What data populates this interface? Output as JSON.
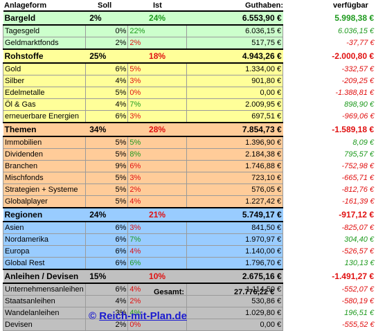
{
  "headers": {
    "anlageform": "Anlageform",
    "soll": "Soll",
    "ist": "Ist",
    "guthaben": "Guthaben:",
    "verfuegbar": "verfügbar"
  },
  "groups": [
    {
      "name": "Bargeld",
      "soll": "2%",
      "ist": "24%",
      "ist_sign": "pos",
      "guthaben": "6.553,90 €",
      "verfuegbar": "5.998,38 €",
      "verf_sign": "pos",
      "cls": "g-bar",
      "items": [
        {
          "name": "Tagesgeld",
          "soll": "0%",
          "ist": "22%",
          "ist_sign": "pos",
          "guthaben": "6.036,15 €",
          "verfuegbar": "6.036,15 €",
          "verf_sign": "pos"
        },
        {
          "name": "Geldmarktfonds",
          "soll": "2%",
          "ist": "2%",
          "ist_sign": "neg",
          "guthaben": "517,75 €",
          "verfuegbar": "-37,77 €",
          "verf_sign": "neg"
        }
      ]
    },
    {
      "name": "Rohstoffe",
      "soll": "25%",
      "ist": "18%",
      "ist_sign": "neg",
      "guthaben": "4.943,26 €",
      "verfuegbar": "-2.000,80 €",
      "verf_sign": "neg",
      "cls": "g-roh",
      "items": [
        {
          "name": "Gold",
          "soll": "6%",
          "ist": "5%",
          "ist_sign": "neg",
          "guthaben": "1.334,00 €",
          "verfuegbar": "-332,57 €",
          "verf_sign": "neg"
        },
        {
          "name": "Silber",
          "soll": "4%",
          "ist": "3%",
          "ist_sign": "neg",
          "guthaben": "901,80 €",
          "verfuegbar": "-209,25 €",
          "verf_sign": "neg"
        },
        {
          "name": "Edelmetalle",
          "soll": "5%",
          "ist": "0%",
          "ist_sign": "neg",
          "guthaben": "0,00 €",
          "verfuegbar": "-1.388,81 €",
          "verf_sign": "neg"
        },
        {
          "name": "Öl & Gas",
          "soll": "4%",
          "ist": "7%",
          "ist_sign": "pos",
          "guthaben": "2.009,95 €",
          "verfuegbar": "898,90 €",
          "verf_sign": "pos"
        },
        {
          "name": "erneuerbare Energien",
          "soll": "6%",
          "ist": "3%",
          "ist_sign": "neg",
          "guthaben": "697,51 €",
          "verfuegbar": "-969,06 €",
          "verf_sign": "neg"
        }
      ]
    },
    {
      "name": "Themen",
      "soll": "34%",
      "ist": "28%",
      "ist_sign": "neg",
      "guthaben": "7.854,73 €",
      "verfuegbar": "-1.589,18 €",
      "verf_sign": "neg",
      "cls": "g-the",
      "items": [
        {
          "name": "Immobilien",
          "soll": "5%",
          "ist": "5%",
          "ist_sign": "pos",
          "guthaben": "1.396,90 €",
          "verfuegbar": "8,09 €",
          "verf_sign": "pos"
        },
        {
          "name": "Dividenden",
          "soll": "5%",
          "ist": "8%",
          "ist_sign": "pos",
          "guthaben": "2.184,38 €",
          "verfuegbar": "795,57 €",
          "verf_sign": "pos"
        },
        {
          "name": "Branchen",
          "soll": "9%",
          "ist": "6%",
          "ist_sign": "neg",
          "guthaben": "1.746,88 €",
          "verfuegbar": "-752,98 €",
          "verf_sign": "neg"
        },
        {
          "name": "Mischfonds",
          "soll": "5%",
          "ist": "3%",
          "ist_sign": "neg",
          "guthaben": "723,10 €",
          "verfuegbar": "-665,71 €",
          "verf_sign": "neg"
        },
        {
          "name": "Strategien + Systeme",
          "soll": "5%",
          "ist": "2%",
          "ist_sign": "neg",
          "guthaben": "576,05 €",
          "verfuegbar": "-812,76 €",
          "verf_sign": "neg"
        },
        {
          "name": "Globalplayer",
          "soll": "5%",
          "ist": "4%",
          "ist_sign": "neg",
          "guthaben": "1.227,42 €",
          "verfuegbar": "-161,39 €",
          "verf_sign": "neg"
        }
      ]
    },
    {
      "name": "Regionen",
      "soll": "24%",
      "ist": "21%",
      "ist_sign": "neg",
      "guthaben": "5.749,17 €",
      "verfuegbar": "-917,12 €",
      "verf_sign": "neg",
      "cls": "g-reg",
      "items": [
        {
          "name": "Asien",
          "soll": "6%",
          "ist": "3%",
          "ist_sign": "neg",
          "guthaben": "841,50 €",
          "verfuegbar": "-825,07 €",
          "verf_sign": "neg"
        },
        {
          "name": "Nordamerika",
          "soll": "6%",
          "ist": "7%",
          "ist_sign": "pos",
          "guthaben": "1.970,97 €",
          "verfuegbar": "304,40 €",
          "verf_sign": "pos"
        },
        {
          "name": "Europa",
          "soll": "6%",
          "ist": "4%",
          "ist_sign": "neg",
          "guthaben": "1.140,00 €",
          "verfuegbar": "-526,57 €",
          "verf_sign": "neg"
        },
        {
          "name": "Global Rest",
          "soll": "6%",
          "ist": "6%",
          "ist_sign": "pos",
          "guthaben": "1.796,70 €",
          "verfuegbar": "130,13 €",
          "verf_sign": "pos"
        }
      ]
    },
    {
      "name": "Anleihen / Devisen",
      "soll": "15%",
      "ist": "10%",
      "ist_sign": "neg",
      "guthaben": "2.675,16 €",
      "verfuegbar": "-1.491,27 €",
      "verf_sign": "neg",
      "cls": "g-anl",
      "items": [
        {
          "name": "Unternehmensanleihen",
          "soll": "6%",
          "ist": "4%",
          "ist_sign": "neg",
          "guthaben": "1.114,50 €",
          "verfuegbar": "-552,07 €",
          "verf_sign": "neg"
        },
        {
          "name": "Staatsanleihen",
          "soll": "4%",
          "ist": "2%",
          "ist_sign": "neg",
          "guthaben": "530,86 €",
          "verfuegbar": "-580,19 €",
          "verf_sign": "neg"
        },
        {
          "name": "Wandelanleihen",
          "soll": "3%",
          "ist": "4%",
          "ist_sign": "pos",
          "guthaben": "1.029,80 €",
          "verfuegbar": "196,51 €",
          "verf_sign": "pos"
        },
        {
          "name": "Devisen",
          "soll": "2%",
          "ist": "0%",
          "ist_sign": "neg",
          "guthaben": "0,00 €",
          "verfuegbar": "-555,52 €",
          "verf_sign": "neg"
        }
      ]
    }
  ],
  "total": {
    "label": "Gesamt:",
    "value": "27.776,22 €"
  },
  "footer": {
    "copyright": "©",
    "link": "Reich-mit-Plan.de"
  }
}
